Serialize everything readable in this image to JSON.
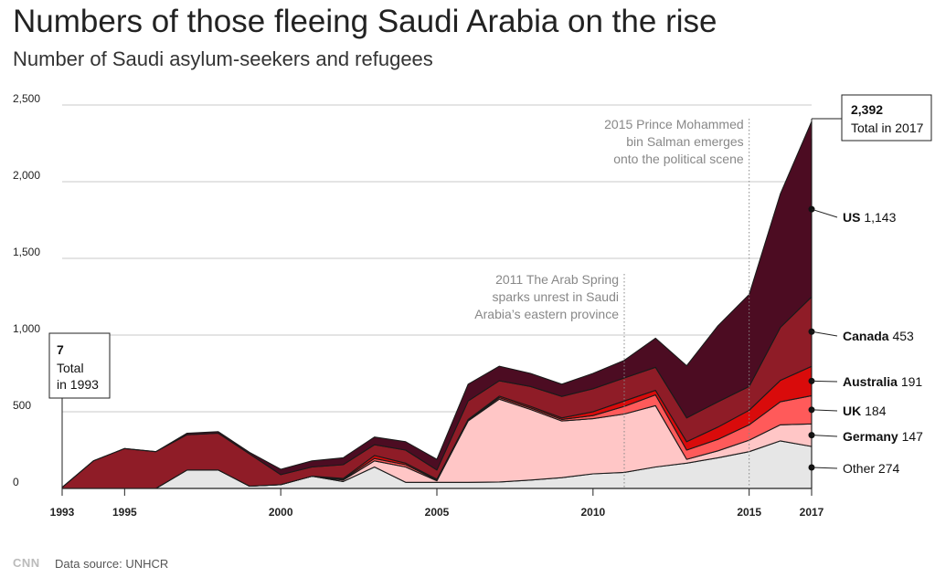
{
  "title": "Numbers of those fleeing Saudi Arabia on the rise",
  "subtitle": "Number of Saudi asylum-seekers and refugees",
  "footer": {
    "logo": "CNN",
    "source": "Data source: UNHCR"
  },
  "colors": {
    "Other": "#e6e6e6",
    "Germany": "#ffc6c6",
    "UK": "#ff5a5a",
    "Australia": "#d90b0b",
    "Canada": "#8f1c27",
    "US": "#4c0c22"
  },
  "chart_data": {
    "type": "area",
    "stacked": true,
    "x": [
      1993,
      1994,
      1995,
      1996,
      1997,
      1998,
      1999,
      2000,
      2001,
      2002,
      2003,
      2004,
      2005,
      2006,
      2007,
      2008,
      2009,
      2010,
      2011,
      2012,
      2013,
      2014,
      2015,
      2016,
      2017
    ],
    "x_ticks": [
      1993,
      1995,
      2000,
      2005,
      2010,
      2015,
      2017
    ],
    "ylim": [
      0,
      2500
    ],
    "y_ticks": [
      {
        "value": 0,
        "label": "0"
      },
      {
        "value": 500,
        "label": "500"
      },
      {
        "value": 1000,
        "label": "1,000"
      },
      {
        "value": 1500,
        "label": "1,500"
      },
      {
        "value": 2000,
        "label": "2,000"
      },
      {
        "value": 2500,
        "label": "2,500"
      }
    ],
    "grid": true,
    "series": [
      {
        "name": "Other",
        "values": [
          0,
          0,
          0,
          0,
          120,
          120,
          15,
          25,
          80,
          45,
          140,
          40,
          40,
          40,
          42,
          55,
          70,
          95,
          105,
          140,
          165,
          200,
          240,
          310,
          274
        ]
      },
      {
        "name": "Germany",
        "values": [
          0,
          0,
          0,
          0,
          0,
          0,
          0,
          0,
          0,
          10,
          40,
          100,
          10,
          400,
          540,
          460,
          370,
          360,
          380,
          400,
          25,
          45,
          75,
          105,
          147
        ]
      },
      {
        "name": "UK",
        "values": [
          0,
          0,
          0,
          0,
          0,
          0,
          0,
          0,
          0,
          5,
          15,
          15,
          5,
          5,
          10,
          10,
          10,
          20,
          50,
          70,
          60,
          75,
          100,
          150,
          184
        ]
      },
      {
        "name": "Australia",
        "values": [
          0,
          0,
          0,
          0,
          0,
          0,
          0,
          0,
          0,
          5,
          20,
          10,
          5,
          5,
          10,
          10,
          10,
          25,
          35,
          30,
          55,
          80,
          95,
          140,
          191
        ]
      },
      {
        "name": "Canada",
        "values": [
          7,
          180,
          260,
          240,
          230,
          240,
          210,
          65,
          60,
          90,
          70,
          85,
          60,
          120,
          100,
          130,
          140,
          150,
          150,
          150,
          155,
          165,
          155,
          345,
          453
        ]
      },
      {
        "name": "US",
        "values": [
          0,
          0,
          0,
          0,
          10,
          10,
          10,
          35,
          40,
          45,
          50,
          55,
          70,
          110,
          95,
          85,
          80,
          100,
          115,
          190,
          340,
          495,
          600,
          870,
          1143
        ]
      }
    ],
    "annotations": [
      {
        "x": 2011,
        "lines": [
          "2011 The Arab Spring",
          "sparks unrest in Saudi",
          "Arabia’s eastern province"
        ]
      },
      {
        "x": 2015,
        "lines": [
          "2015 Prince Mohammed",
          "bin Salman emerges",
          "onto the political scene"
        ]
      }
    ],
    "callouts": [
      {
        "value": "7",
        "lines": [
          "Total",
          "in 1993"
        ]
      },
      {
        "value": "2,392",
        "lines": [
          "Total in 2017"
        ]
      }
    ],
    "end_labels": [
      {
        "series": "US",
        "name": "US",
        "value": "1,143"
      },
      {
        "series": "Canada",
        "name": "Canada",
        "value": "453"
      },
      {
        "series": "Australia",
        "name": "Australia",
        "value": "191"
      },
      {
        "series": "UK",
        "name": "UK",
        "value": "184"
      },
      {
        "series": "Germany",
        "name": "Germany",
        "value": "147"
      },
      {
        "series": "Other",
        "name": "Other",
        "value": "274"
      }
    ]
  }
}
